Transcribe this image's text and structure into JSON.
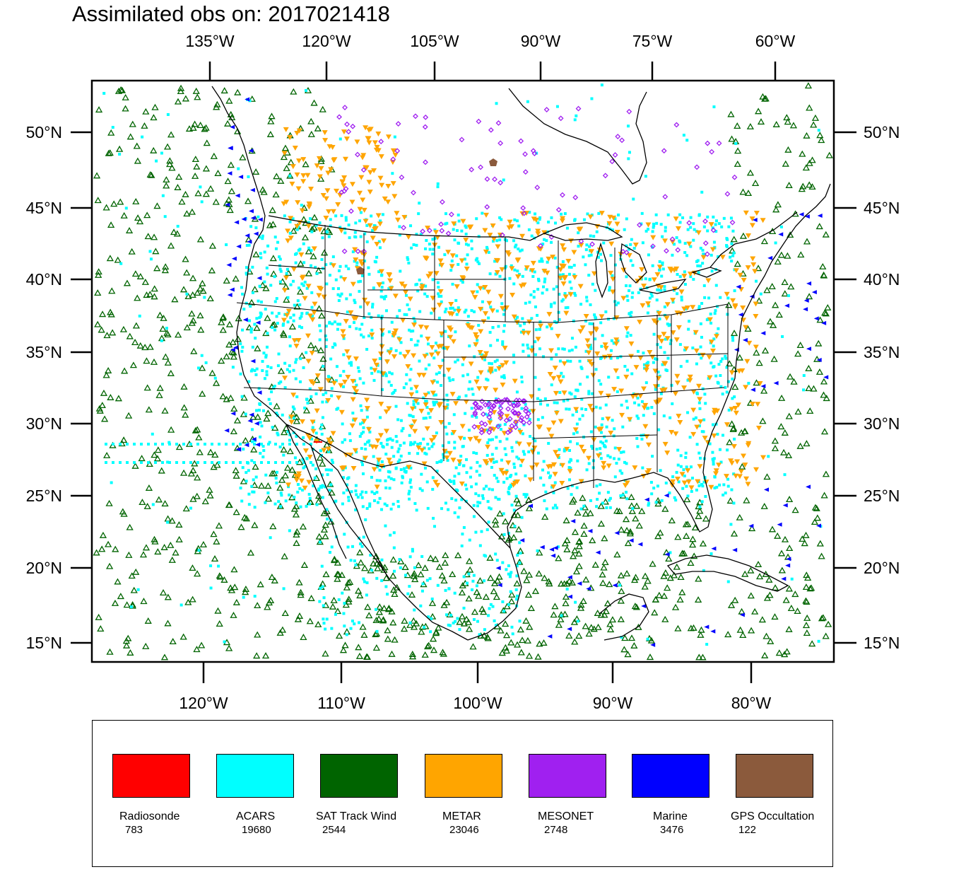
{
  "title": "Assimilated obs on: 2017021418",
  "top_axis_labels": [
    "135°W",
    "120°W",
    "105°W",
    "90°W",
    "75°W",
    "60°W"
  ],
  "bottom_axis_labels": [
    "120°W",
    "110°W",
    "100°W",
    "90°W",
    "80°W"
  ],
  "left_axis_labels": [
    "50°N",
    "45°N",
    "40°N",
    "35°N",
    "30°N",
    "25°N",
    "20°N",
    "15°N"
  ],
  "right_axis_labels": [
    "50°N",
    "45°N",
    "40°N",
    "35°N",
    "30°N",
    "25°N",
    "20°N",
    "15°N"
  ],
  "legend": [
    {
      "name": "Radiosonde",
      "count": "783",
      "color": "#ff0000",
      "marker": "line"
    },
    {
      "name": "ACARS",
      "count": "19680",
      "color": "#00ffff",
      "marker": "square"
    },
    {
      "name": "SAT Track Wind",
      "count": "2544",
      "color": "#006400",
      "marker": "triangle-open"
    },
    {
      "name": "METAR",
      "count": "23046",
      "color": "#ffa500",
      "marker": "triangle-down"
    },
    {
      "name": "MESONET",
      "count": "2748",
      "color": "#a020f0",
      "marker": "diamond"
    },
    {
      "name": "Marine",
      "count": "3476",
      "color": "#0000ff",
      "marker": "triangle-left"
    },
    {
      "name": "GPS Occultation",
      "count": "122",
      "color": "#8b5a3c",
      "marker": "pentagon"
    }
  ]
}
